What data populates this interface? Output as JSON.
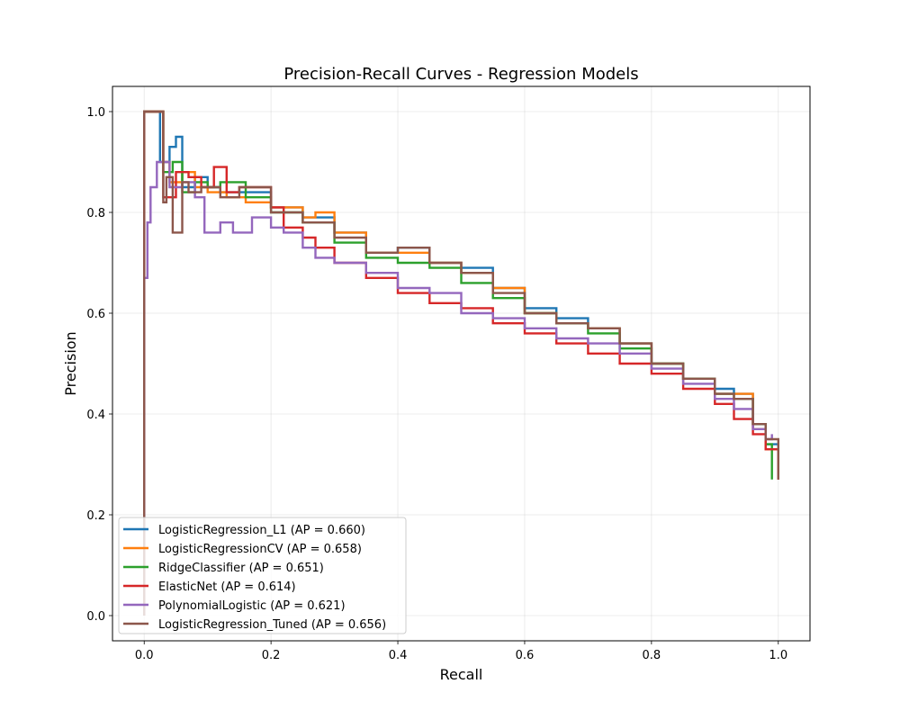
{
  "chart_data": {
    "type": "line",
    "title": "Precision-Recall Curves - Regression Models",
    "xlabel": "Recall",
    "ylabel": "Precision",
    "xlim": [
      -0.05,
      1.05
    ],
    "ylim": [
      -0.05,
      1.05
    ],
    "xticks": [
      "0.0",
      "0.2",
      "0.4",
      "0.6",
      "0.8",
      "1.0"
    ],
    "yticks": [
      "0.0",
      "0.2",
      "0.4",
      "0.6",
      "0.8",
      "1.0"
    ],
    "grid": true,
    "legend_position": "lower-left",
    "series": [
      {
        "name": "LogisticRegression_L1 (AP = 0.660)",
        "color": "#1f77b4",
        "x": [
          0.0,
          0.0,
          0.005,
          0.01,
          0.015,
          0.02,
          0.025,
          0.03,
          0.04,
          0.05,
          0.06,
          0.08,
          0.1,
          0.12,
          0.15,
          0.2,
          0.25,
          0.3,
          0.35,
          0.4,
          0.45,
          0.5,
          0.55,
          0.6,
          0.65,
          0.7,
          0.75,
          0.8,
          0.85,
          0.9,
          0.93,
          0.96,
          0.98,
          1.0
        ],
        "y": [
          0.0,
          1.0,
          1.0,
          1.0,
          1.0,
          1.0,
          0.9,
          0.9,
          0.93,
          0.95,
          0.85,
          0.87,
          0.85,
          0.84,
          0.84,
          0.81,
          0.79,
          0.76,
          0.72,
          0.73,
          0.7,
          0.69,
          0.65,
          0.61,
          0.59,
          0.57,
          0.54,
          0.5,
          0.47,
          0.45,
          0.44,
          0.38,
          0.34,
          0.27
        ]
      },
      {
        "name": "LogisticRegressionCV (AP = 0.658)",
        "color": "#ff7f0e",
        "x": [
          0.0,
          0.0,
          0.005,
          0.01,
          0.02,
          0.03,
          0.04,
          0.06,
          0.08,
          0.1,
          0.13,
          0.16,
          0.2,
          0.25,
          0.27,
          0.3,
          0.35,
          0.4,
          0.45,
          0.5,
          0.55,
          0.6,
          0.65,
          0.7,
          0.75,
          0.8,
          0.85,
          0.9,
          0.93,
          0.96,
          0.98,
          1.0
        ],
        "y": [
          0.0,
          1.0,
          1.0,
          1.0,
          1.0,
          0.9,
          0.86,
          0.88,
          0.85,
          0.84,
          0.83,
          0.82,
          0.81,
          0.79,
          0.8,
          0.76,
          0.72,
          0.72,
          0.7,
          0.68,
          0.65,
          0.6,
          0.58,
          0.57,
          0.54,
          0.5,
          0.47,
          0.44,
          0.44,
          0.37,
          0.33,
          0.27
        ]
      },
      {
        "name": "RidgeClassifier (AP = 0.651)",
        "color": "#2ca02c",
        "x": [
          0.0,
          0.0,
          0.005,
          0.01,
          0.02,
          0.03,
          0.045,
          0.06,
          0.08,
          0.1,
          0.12,
          0.14,
          0.16,
          0.2,
          0.25,
          0.3,
          0.35,
          0.4,
          0.45,
          0.5,
          0.55,
          0.6,
          0.65,
          0.7,
          0.75,
          0.8,
          0.85,
          0.9,
          0.93,
          0.96,
          0.98,
          0.99
        ],
        "y": [
          0.0,
          1.0,
          1.0,
          1.0,
          1.0,
          0.88,
          0.9,
          0.84,
          0.86,
          0.85,
          0.86,
          0.86,
          0.83,
          0.8,
          0.78,
          0.74,
          0.71,
          0.7,
          0.69,
          0.66,
          0.63,
          0.6,
          0.58,
          0.56,
          0.53,
          0.5,
          0.47,
          0.44,
          0.43,
          0.38,
          0.34,
          0.27
        ]
      },
      {
        "name": "ElasticNet (AP = 0.614)",
        "color": "#d62728",
        "x": [
          0.0,
          0.0,
          0.005,
          0.01,
          0.02,
          0.03,
          0.05,
          0.07,
          0.09,
          0.11,
          0.13,
          0.15,
          0.18,
          0.2,
          0.22,
          0.25,
          0.27,
          0.3,
          0.35,
          0.4,
          0.45,
          0.5,
          0.55,
          0.6,
          0.65,
          0.7,
          0.75,
          0.8,
          0.85,
          0.9,
          0.93,
          0.96,
          0.98,
          1.0
        ],
        "y": [
          0.0,
          1.0,
          1.0,
          1.0,
          1.0,
          0.83,
          0.88,
          0.87,
          0.85,
          0.89,
          0.84,
          0.85,
          0.85,
          0.81,
          0.77,
          0.75,
          0.73,
          0.7,
          0.67,
          0.64,
          0.62,
          0.61,
          0.58,
          0.56,
          0.54,
          0.52,
          0.5,
          0.48,
          0.45,
          0.42,
          0.39,
          0.36,
          0.33,
          0.27
        ]
      },
      {
        "name": "PolynomialLogistic (AP = 0.621)",
        "color": "#9467bd",
        "x": [
          0.0,
          0.0,
          0.005,
          0.01,
          0.02,
          0.03,
          0.04,
          0.06,
          0.08,
          0.095,
          0.12,
          0.14,
          0.17,
          0.2,
          0.22,
          0.25,
          0.27,
          0.3,
          0.35,
          0.4,
          0.45,
          0.5,
          0.55,
          0.6,
          0.65,
          0.7,
          0.75,
          0.8,
          0.85,
          0.9,
          0.93,
          0.96,
          0.98,
          0.99
        ],
        "y": [
          0.0,
          0.67,
          0.78,
          0.85,
          0.9,
          0.9,
          0.85,
          0.86,
          0.83,
          0.76,
          0.78,
          0.76,
          0.79,
          0.77,
          0.76,
          0.73,
          0.71,
          0.7,
          0.68,
          0.65,
          0.64,
          0.6,
          0.59,
          0.57,
          0.55,
          0.54,
          0.52,
          0.49,
          0.46,
          0.43,
          0.41,
          0.37,
          0.35,
          0.36
        ]
      },
      {
        "name": "LogisticRegression_Tuned (AP = 0.656)",
        "color": "#8c564b",
        "x": [
          0.0,
          0.0,
          0.005,
          0.01,
          0.02,
          0.03,
          0.035,
          0.045,
          0.06,
          0.07,
          0.09,
          0.12,
          0.15,
          0.2,
          0.25,
          0.3,
          0.35,
          0.4,
          0.45,
          0.5,
          0.55,
          0.6,
          0.65,
          0.7,
          0.75,
          0.8,
          0.85,
          0.9,
          0.93,
          0.96,
          0.98,
          1.0
        ],
        "y": [
          0.0,
          1.0,
          1.0,
          1.0,
          1.0,
          0.82,
          0.87,
          0.76,
          0.86,
          0.84,
          0.85,
          0.83,
          0.85,
          0.8,
          0.78,
          0.75,
          0.72,
          0.73,
          0.7,
          0.68,
          0.64,
          0.6,
          0.58,
          0.57,
          0.54,
          0.5,
          0.47,
          0.44,
          0.43,
          0.38,
          0.35,
          0.27
        ]
      }
    ]
  }
}
